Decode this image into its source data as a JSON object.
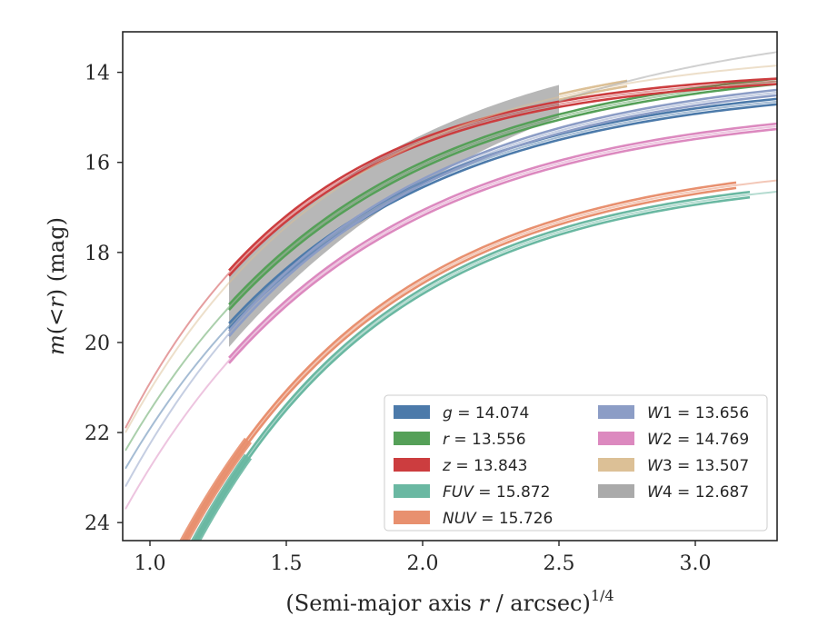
{
  "chart_data": {
    "type": "line",
    "title": "",
    "xlabel": "(Semi-major axis r / arcsec)",
    "xlabel_parts": [
      "(Semi-major axis ",
      "r",
      " / arcsec)",
      "1/4"
    ],
    "ylabel_parts": [
      "m",
      "(<",
      "r",
      ")",
      " (mag)"
    ],
    "xlim": [
      0.9,
      3.3
    ],
    "ylim": [
      24.4,
      13.1
    ],
    "y_inverted": true,
    "xticks": [
      1.0,
      1.5,
      2.0,
      2.5,
      3.0
    ],
    "xtick_labels": [
      "1.0",
      "1.5",
      "2.0",
      "2.5",
      "3.0"
    ],
    "yticks": [
      14,
      16,
      18,
      20,
      22,
      24
    ],
    "ytick_labels": [
      "14",
      "16",
      "18",
      "20",
      "22",
      "24"
    ],
    "grid": false,
    "legend_location": "lower-right",
    "legend_columns": 2,
    "series": [
      {
        "name": "g",
        "total": "14.074",
        "color": "#4c7aaa",
        "x_start": 0.91,
        "x_end": 3.3,
        "x_core_start": 1.29,
        "x_core_end": 3.3,
        "y_at_start": 22.8,
        "y_at_end": 14.65,
        "decay": 1.2
      },
      {
        "name": "r",
        "total": "13.556",
        "color": "#55a058",
        "x_start": 0.91,
        "x_end": 3.3,
        "x_core_start": 1.29,
        "x_core_end": 3.3,
        "y_at_start": 22.4,
        "y_at_end": 14.2,
        "decay": 1.2
      },
      {
        "name": "z",
        "total": "13.843",
        "color": "#cc3d3f",
        "x_start": 0.91,
        "x_end": 3.3,
        "x_core_start": 1.29,
        "x_core_end": 3.3,
        "y_at_start": 21.9,
        "y_at_end": 14.2,
        "decay": 1.5
      },
      {
        "name": "FUV",
        "total": "15.872",
        "color": "#6ab8a2",
        "x_start": 1.1,
        "x_end": 3.3,
        "x_core_start": 1.11,
        "x_core_end": 3.2,
        "y_at_start": 25.2,
        "y_at_end": 16.65,
        "decay": 1.35
      },
      {
        "name": "NUV",
        "total": "15.726",
        "color": "#e8906f",
        "x_start": 1.1,
        "x_end": 3.3,
        "x_core_start": 1.11,
        "x_core_end": 3.15,
        "y_at_start": 24.7,
        "y_at_end": 16.4,
        "decay": 1.3
      },
      {
        "name": "W1",
        "total": "13.656",
        "color": "#8c9dc6",
        "x_start": 0.91,
        "x_end": 3.3,
        "x_core_start": 1.29,
        "x_core_end": 3.3,
        "y_at_start": 23.2,
        "y_at_end": 14.45,
        "decay": 1.2
      },
      {
        "name": "W2",
        "total": "14.769",
        "color": "#dc89bf",
        "x_start": 0.91,
        "x_end": 3.3,
        "x_core_start": 1.29,
        "x_core_end": 3.3,
        "y_at_start": 23.7,
        "y_at_end": 15.2,
        "decay": 1.2
      },
      {
        "name": "W3",
        "total": "13.507",
        "color": "#dcc096",
        "x_start": 0.91,
        "x_end": 3.3,
        "x_core_start": 2.5,
        "x_core_end": 2.75,
        "y_at_start": 22.0,
        "y_at_end": 13.85,
        "decay": 1.3
      },
      {
        "name": "W4",
        "total": "12.687",
        "color": "#aaaaaa",
        "x_start": 1.29,
        "x_end": 3.3,
        "x_core_start": 1.29,
        "x_core_end": 2.5,
        "y_at_start": 19.3,
        "y_at_end": 13.55,
        "decay": 1.0
      }
    ]
  }
}
